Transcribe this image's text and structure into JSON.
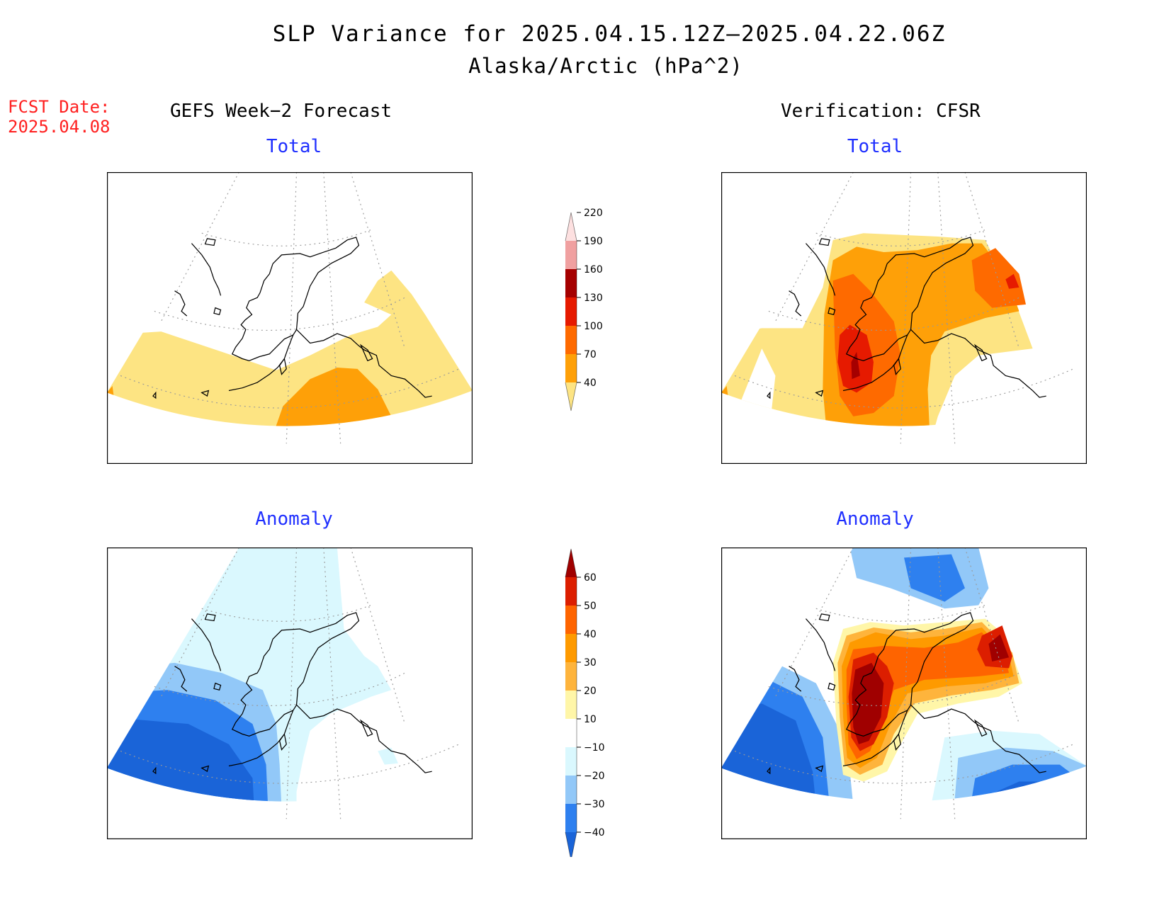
{
  "title": "SLP Variance for 2025.04.15.12Z—2025.04.22.06Z",
  "subtitle": "Alaska/Arctic (hPa^2)",
  "fcst_date": {
    "label": "FCST Date:",
    "value": "2025.04.08"
  },
  "columns": {
    "left_heading": "GEFS Week−2 Forecast",
    "right_heading": "Verification: CFSR"
  },
  "panels": {
    "forecast_total": {
      "title": "Total"
    },
    "verification_total": {
      "title": "Total"
    },
    "forecast_anomaly": {
      "title": "Anomaly"
    },
    "verification_anomaly": {
      "title": "Anomaly"
    }
  },
  "colorbars": {
    "total": {
      "levels": [
        "40",
        "70",
        "100",
        "130",
        "160",
        "190",
        "220"
      ],
      "colors": [
        "#fde483",
        "#fea008",
        "#fe6a00",
        "#e61a00",
        "#a50000",
        "#f0a0a0",
        "#fde0e0"
      ]
    },
    "anomaly": {
      "levels": [
        "−40",
        "−30",
        "−20",
        "−10",
        "10",
        "20",
        "30",
        "40",
        "50",
        "60"
      ],
      "colors": [
        "#1a64d8",
        "#2e80ef",
        "#92c8f8",
        "#daf8fe",
        "#ffffff",
        "#fff6a8",
        "#feb43c",
        "#fe9a00",
        "#fe6400",
        "#dc1e00",
        "#a00000"
      ]
    }
  }
}
